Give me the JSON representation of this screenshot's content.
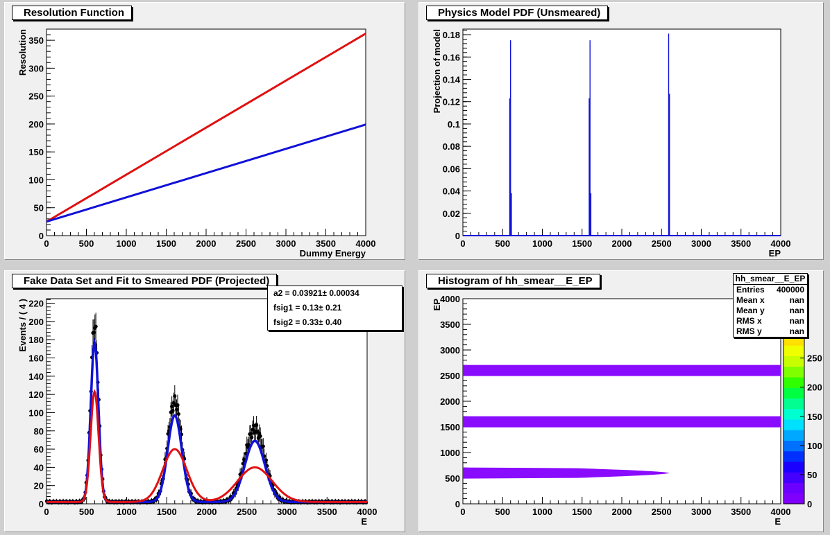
{
  "chart_data": [
    {
      "type": "line",
      "title": "Resolution Function",
      "xlabel": "Dummy Energy",
      "ylabel": "Resolution",
      "xlim": [
        0,
        4000
      ],
      "ylim": [
        0,
        370
      ],
      "xticks": [
        "0",
        "500",
        "1000",
        "1500",
        "2000",
        "2500",
        "3000",
        "3500",
        "4000"
      ],
      "yticks": [
        "0",
        "50",
        "100",
        "150",
        "200",
        "250",
        "300",
        "350"
      ],
      "series": [
        {
          "color": "#e01010",
          "x": [
            0,
            4000
          ],
          "y": [
            25,
            362
          ]
        },
        {
          "color": "#1010d8",
          "x": [
            0,
            4000
          ],
          "y": [
            25,
            199
          ]
        }
      ]
    },
    {
      "type": "bar",
      "title": "Physics Model PDF (Unsmeared)",
      "xlabel": "EP",
      "ylabel": "Projection of model",
      "xlim": [
        0,
        4000
      ],
      "ylim": [
        0,
        0.185
      ],
      "xticks": [
        "0",
        "500",
        "1000",
        "1500",
        "2000",
        "2500",
        "3000",
        "3500",
        "4000"
      ],
      "yticks": [
        "0",
        "0.02",
        "0.04",
        "0.06",
        "0.08",
        "0.1",
        "0.12",
        "0.14",
        "0.16",
        "0.18"
      ],
      "color": "#1010d8",
      "peaks": [
        {
          "x": 600,
          "values": [
            0.123,
            0.175,
            0.038
          ]
        },
        {
          "x": 1600,
          "values": [
            0.123,
            0.175,
            0.038
          ]
        },
        {
          "x": 2600,
          "values": [
            0.181,
            0.127,
            0.0
          ]
        }
      ]
    },
    {
      "type": "scatter",
      "title": "Fake Data Set and Fit to Smeared PDF (Projected)",
      "xlabel": "E",
      "ylabel": "Events / ( 4 )",
      "xlim": [
        0,
        4000
      ],
      "ylim": [
        0,
        225
      ],
      "xticks": [
        "0",
        "500",
        "1000",
        "1500",
        "2000",
        "2500",
        "3000",
        "3500",
        "4000"
      ],
      "yticks": [
        "0",
        "20",
        "40",
        "60",
        "80",
        "100",
        "120",
        "140",
        "160",
        "180",
        "200",
        "220"
      ],
      "fit_parameters": [
        {
          "label": "a2 =  0.03921",
          "pm": "± 0.00034"
        },
        {
          "label": "fsig1 =  0.13",
          "pm": "± 0.21"
        },
        {
          "label": "fsig2 =  0.33",
          "pm": "± 0.40"
        }
      ],
      "peaks": [
        {
          "mean": 600,
          "data_peak": 195,
          "fit_peak": 175,
          "red_peak": 121,
          "data_sigma": 48,
          "red_sigma": 50
        },
        {
          "mean": 1600,
          "data_peak": 110,
          "fit_peak": 95,
          "red_peak": 58,
          "data_sigma": 88,
          "red_sigma": 150
        },
        {
          "mean": 2600,
          "data_peak": 80,
          "fit_peak": 67,
          "red_peak": 38,
          "data_sigma": 125,
          "red_sigma": 215
        }
      ],
      "baseline": 2,
      "series_colors": {
        "data": "#000000",
        "fit": "#1010d8",
        "component": "#e01010"
      }
    },
    {
      "type": "heatmap",
      "title": "Histogram of hh_smear__E_EP",
      "xlabel": "E",
      "ylabel": "EP",
      "xlim": [
        0,
        4000
      ],
      "ylim": [
        0,
        4000
      ],
      "xticks": [
        "0",
        "500",
        "1000",
        "1500",
        "2000",
        "2500",
        "3000",
        "3500",
        "4000"
      ],
      "yticks": [
        "0",
        "500",
        "1000",
        "1500",
        "2000",
        "2500",
        "3000",
        "3500",
        "4000"
      ],
      "zticks": [
        "0",
        "50",
        "100",
        "150",
        "200",
        "250"
      ],
      "zlim": [
        0,
        290
      ],
      "bands": [
        {
          "ep": 600,
          "x_start": 0,
          "x_end": 2600,
          "color": "#8a0cff"
        },
        {
          "ep": 1600,
          "x_start": 0,
          "x_end": 4000,
          "color": "#8a0cff"
        },
        {
          "ep": 2600,
          "x_start": 0,
          "x_end": 4000,
          "color": "#8a0cff"
        }
      ],
      "stats": {
        "name": "hh_smear__E_EP",
        "rows": [
          {
            "label": "Entries",
            "value": "400000"
          },
          {
            "label": "Mean x",
            "value": "nan"
          },
          {
            "label": "Mean y",
            "value": "nan"
          },
          {
            "label": "RMS x",
            "value": "nan"
          },
          {
            "label": "RMS y",
            "value": "nan"
          }
        ]
      },
      "palette": [
        "#7f00ff",
        "#6a00ff",
        "#4400ff",
        "#1a00ff",
        "#0030ff",
        "#0070ff",
        "#00a8ff",
        "#00e0ff",
        "#00ffd0",
        "#00ff90",
        "#00ff40",
        "#30ff00",
        "#80ff00",
        "#c8ff00",
        "#f0ff00",
        "#ffe000"
      ]
    }
  ]
}
